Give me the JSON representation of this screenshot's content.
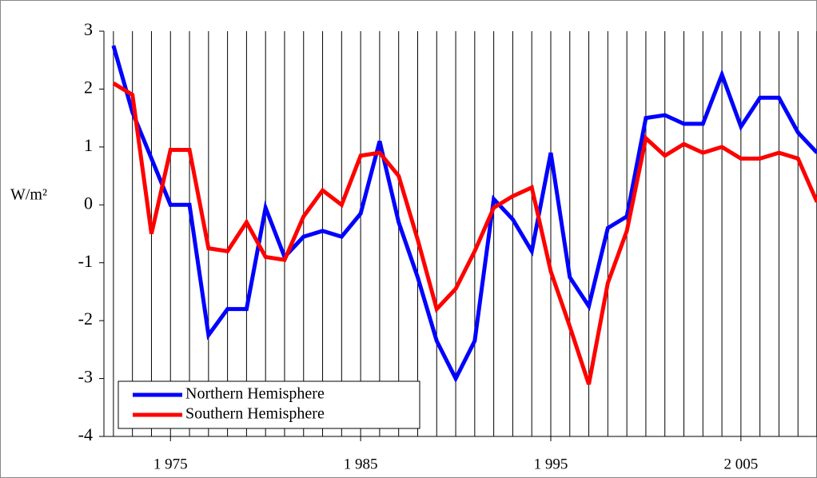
{
  "chart_data": {
    "type": "line",
    "y_label": "W/m²",
    "x": [
      1972,
      1973,
      1974,
      1975,
      1976,
      1977,
      1978,
      1979,
      1980,
      1981,
      1982,
      1983,
      1984,
      1985,
      1986,
      1987,
      1988,
      1989,
      1990,
      1991,
      1992,
      1993,
      1994,
      1995,
      1996,
      1997,
      1998,
      1999,
      2000,
      2001,
      2002,
      2003,
      2004,
      2005,
      2006,
      2007,
      2008,
      2009
    ],
    "series": [
      {
        "name": "Northern Hemisphere",
        "color": "#0000ff",
        "values": [
          2.75,
          1.6,
          0.8,
          0.0,
          0.0,
          -2.25,
          -1.8,
          -1.8,
          -0.05,
          -0.9,
          -0.55,
          -0.45,
          -0.55,
          -0.15,
          1.1,
          -0.3,
          -1.25,
          -2.35,
          -3.0,
          -2.35,
          0.1,
          -0.25,
          -0.8,
          0.9,
          -1.25,
          -1.75,
          -0.4,
          -0.2,
          1.5,
          1.55,
          1.4,
          1.4,
          2.25,
          1.35,
          1.85,
          1.85,
          1.25,
          0.9
        ]
      },
      {
        "name": "Southern Hemisphere",
        "color": "#ff0000",
        "values": [
          2.1,
          1.9,
          -0.5,
          0.95,
          0.95,
          -0.75,
          -0.8,
          -0.3,
          -0.9,
          -0.95,
          -0.2,
          0.25,
          0.0,
          0.85,
          0.9,
          0.5,
          -0.6,
          -1.8,
          -1.45,
          -0.8,
          -0.05,
          0.15,
          0.3,
          -1.15,
          -2.1,
          -3.1,
          -1.35,
          -0.45,
          1.15,
          0.85,
          1.05,
          0.9,
          1.0,
          0.8,
          0.8,
          0.9,
          0.8,
          0.05
        ]
      }
    ],
    "xlim": [
      1971.5,
      2009
    ],
    "xticks": [
      {
        "value": 1975,
        "label": "1 975"
      },
      {
        "value": 1985,
        "label": "1 985"
      },
      {
        "value": 1995,
        "label": "1 995"
      },
      {
        "value": 2005,
        "label": "2 005"
      }
    ],
    "ylim": [
      -4,
      3
    ],
    "yticks": [
      -4,
      -3,
      -2,
      -1,
      0,
      1,
      2,
      3
    ],
    "grid": true
  }
}
